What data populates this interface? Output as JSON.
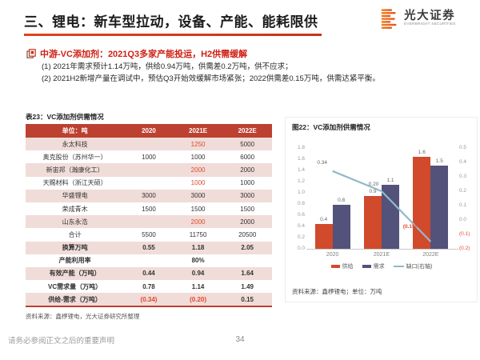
{
  "page": {
    "title": "三、锂电：新车型拉动，设备、产能、能耗限供",
    "footer_disclaimer": "请务必参阅正文之后的重要声明",
    "page_number": "34"
  },
  "logo": {
    "name_cn": "光大证券",
    "name_en": "EVERBRIGHT SECURITIES"
  },
  "summary": {
    "heading": "中游-VC添加剂：2021Q3多家产能投运，H2供需缓解",
    "points": [
      "(1) 2021年需求预计1.14万吨，供给0.94万吨，供需差0.2万吨，供不应求；",
      "(2) 2021H2新增产量在调试中，预估Q3开始效缓解市场紧张；2022供需差0.15万吨，供需达紧平衡。"
    ]
  },
  "table": {
    "title": "表23：VC添加剂供需情况",
    "columns": [
      "单位：吨",
      "2020",
      "2021E",
      "2022E"
    ],
    "rows": [
      {
        "label": "永太科技",
        "values": [
          "",
          "1250",
          "5000"
        ],
        "red": [
          false,
          true,
          false
        ],
        "bold": false
      },
      {
        "label": "奥克股份（苏州华一）",
        "values": [
          "1000",
          "1000",
          "6000"
        ],
        "red": [
          false,
          false,
          false
        ],
        "bold": false
      },
      {
        "label": "新宙邦（瀚康化工）",
        "values": [
          "",
          "2000",
          "2000"
        ],
        "red": [
          false,
          true,
          false
        ],
        "bold": false
      },
      {
        "label": "天赐材料（浙江天硕）",
        "values": [
          "",
          "1000",
          "1000"
        ],
        "red": [
          false,
          true,
          false
        ],
        "bold": false
      },
      {
        "label": "华盛锂电",
        "values": [
          "3000",
          "3000",
          "3000"
        ],
        "red": [
          false,
          false,
          false
        ],
        "bold": false
      },
      {
        "label": "荣成青木",
        "values": [
          "1500",
          "1500",
          "1500"
        ],
        "red": [
          false,
          false,
          false
        ],
        "bold": false
      },
      {
        "label": "山东永浩",
        "values": [
          "",
          "2000",
          "2000"
        ],
        "red": [
          false,
          true,
          false
        ],
        "bold": false
      },
      {
        "label": "合计",
        "values": [
          "5500",
          "11750",
          "20500"
        ],
        "red": [
          false,
          false,
          false
        ],
        "bold": false
      },
      {
        "label": "换算万吨",
        "values": [
          "0.55",
          "1.18",
          "2.05"
        ],
        "red": [
          false,
          false,
          false
        ],
        "bold": true
      },
      {
        "label": "产能利用率",
        "values": [
          "",
          "80%",
          ""
        ],
        "red": [
          false,
          false,
          false
        ],
        "bold": true
      },
      {
        "label": "有效产能（万吨）",
        "values": [
          "0.44",
          "0.94",
          "1.64"
        ],
        "red": [
          false,
          false,
          false
        ],
        "bold": true
      },
      {
        "label": "VC需求量（万吨）",
        "values": [
          "0.78",
          "1.14",
          "1.49"
        ],
        "red": [
          false,
          false,
          false
        ],
        "bold": true
      },
      {
        "label": "供给-需求（万吨）",
        "values": [
          "(0.34)",
          "(0.20)",
          "0.15"
        ],
        "red": [
          true,
          true,
          false
        ],
        "bold": true
      }
    ],
    "source": "资料来源：鑫椤锂电，光大证券研究所整理"
  },
  "chart": {
    "title": "图22：VC添加剂供需情况",
    "source": "资料来源：鑫椤锂电；单位：万吨"
  },
  "chart_data": {
    "type": "bar",
    "title": "图22：VC添加剂供需情况",
    "categories": [
      "2020",
      "2021E",
      "2022E"
    ],
    "series": [
      {
        "name": "供给",
        "kind": "bar",
        "axis": "left",
        "color": "#d14a2b",
        "values": [
          0.44,
          0.94,
          1.64
        ],
        "labels": [
          "0.4",
          "0.9",
          "1.6"
        ]
      },
      {
        "name": "需求",
        "kind": "bar",
        "axis": "left",
        "color": "#53527a",
        "values": [
          0.78,
          1.14,
          1.49
        ],
        "labels": [
          "0.8",
          "1.1",
          "1.5"
        ]
      },
      {
        "name": "缺口(右轴)",
        "kind": "line",
        "axis": "right",
        "color": "#92b9c8",
        "values": [
          0.34,
          0.2,
          -0.15
        ],
        "labels": [
          "0.34",
          "0.20",
          "(0.15)"
        ],
        "label_red": [
          false,
          false,
          true
        ]
      }
    ],
    "left_axis": {
      "min": 0,
      "max": 1.8,
      "ticks": [
        "1.8",
        "1.6",
        "1.4",
        "1.2",
        "1.0",
        "0.8",
        "0.6",
        "0.4",
        "0.2",
        "0.0"
      ]
    },
    "right_axis": {
      "min": -0.2,
      "max": 0.5,
      "ticks": [
        "0.5",
        "0.4",
        "0.3",
        "0.2",
        "0.1",
        "0.0",
        "(0.1)",
        "(0.2)"
      ]
    },
    "legend_position": "bottom",
    "grid": false
  },
  "colors": {
    "accent": "#d6391c",
    "table_header_bg": "#bc4130",
    "row_pink": "#f0dcd8",
    "red_text": "#e2492e"
  }
}
